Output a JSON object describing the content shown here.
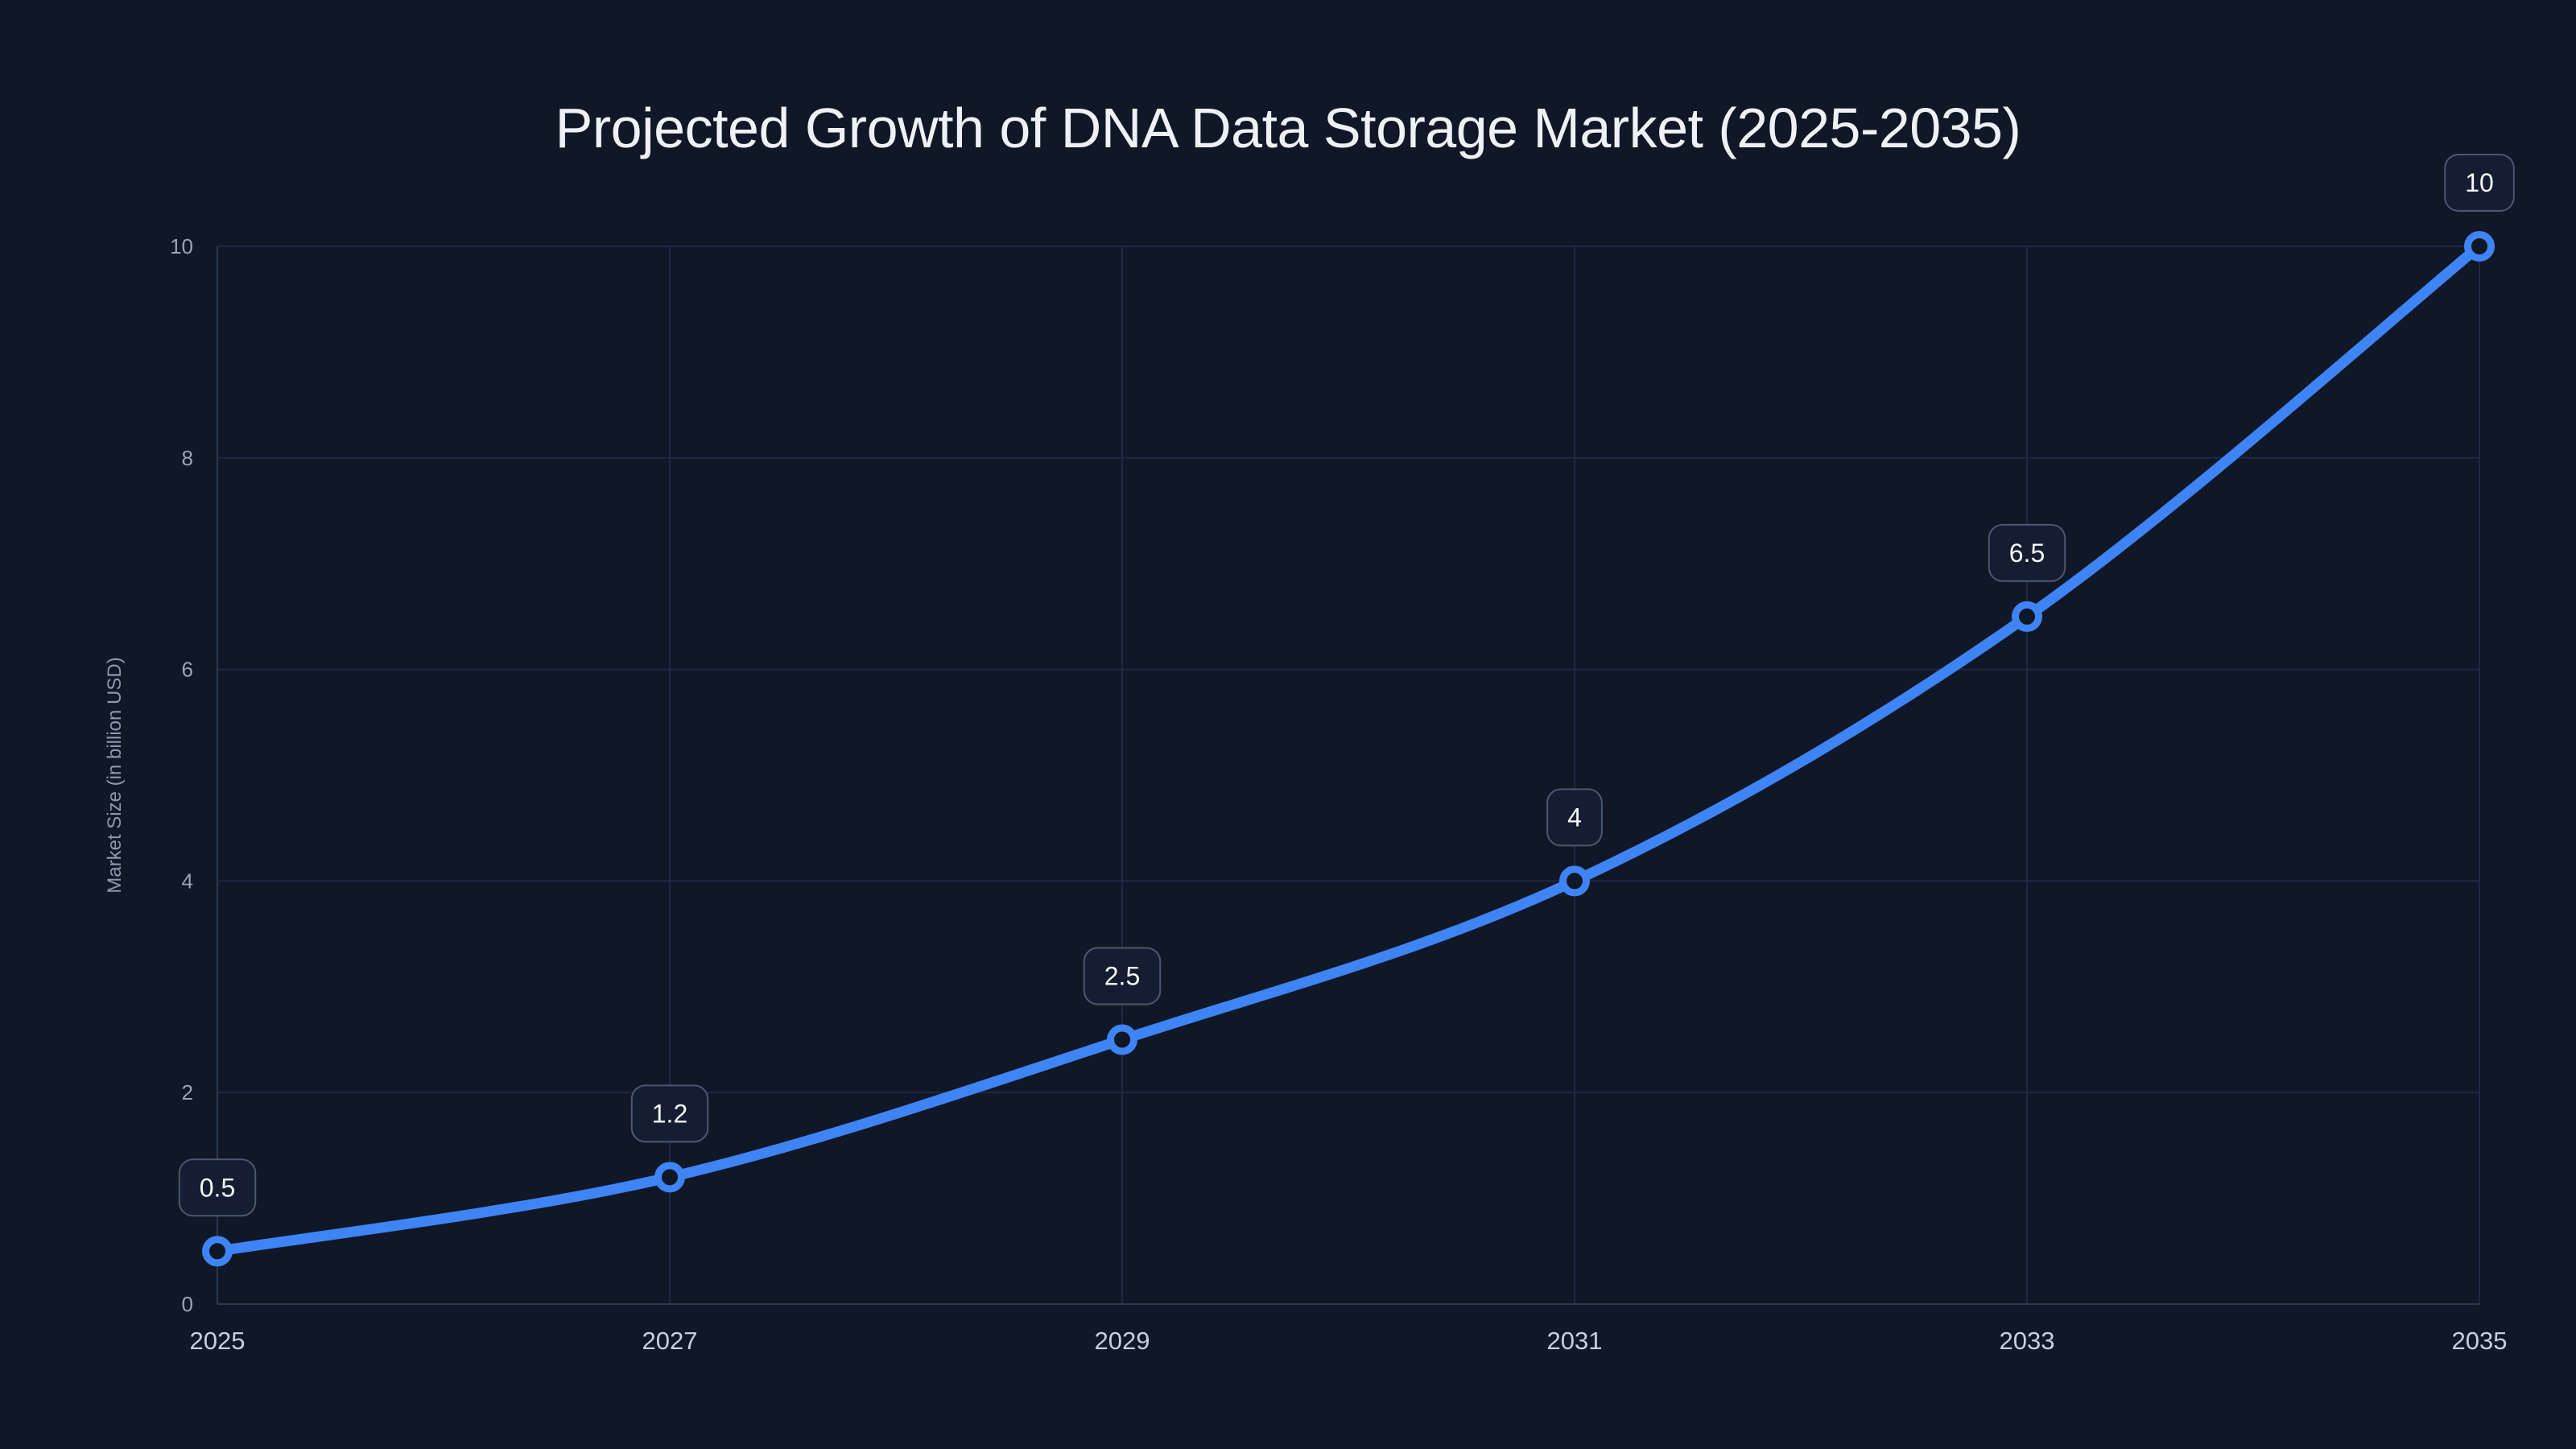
{
  "page": {
    "background_color": "#101727"
  },
  "chart_data": {
    "type": "line",
    "title": "Projected Growth of DNA Data Storage Market (2025-2035)",
    "x": [
      2025,
      2027,
      2029,
      2031,
      2033,
      2035
    ],
    "xticks": [
      "2025",
      "2027",
      "2029",
      "2031",
      "2033",
      "2035"
    ],
    "series": [
      {
        "name": "Market Size",
        "values": [
          0.5,
          1.2,
          2.5,
          4,
          6.5,
          10
        ]
      }
    ],
    "data_labels": [
      "0.5",
      "1.2",
      "2.5",
      "4",
      "6.5",
      "10"
    ],
    "xlabel": "",
    "ylabel": "Market Size (in billion USD)",
    "ylim": [
      0,
      10
    ],
    "yticks": [
      0,
      2,
      4,
      6,
      8,
      10
    ],
    "grid": true,
    "legend": false,
    "colors": {
      "line": "#3e84f5",
      "marker_fill": "#101727",
      "grid": "#1e2940",
      "axis_border": "#2c3950",
      "xtick_text": "#c7cfda",
      "ytick_text": "#9aa5b5",
      "axis_title_text": "#8d98aa",
      "title_text": "#eef1f6",
      "label_box_fill": "#141d31",
      "label_box_border": "#4c586f",
      "label_text": "#f8fafc"
    }
  }
}
